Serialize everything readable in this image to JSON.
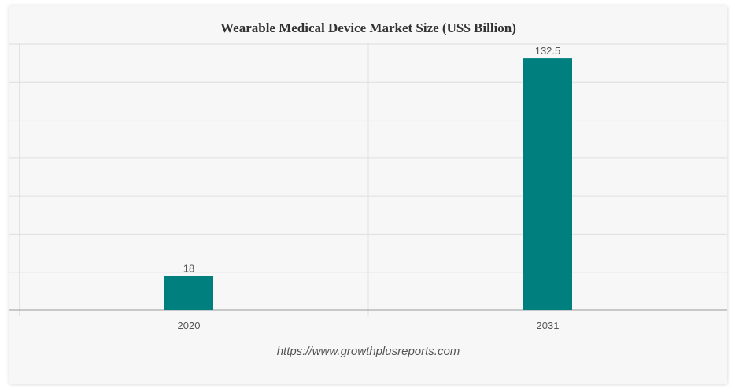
{
  "chart_data": {
    "type": "bar",
    "title": "Wearable Medical Device Market Size (US$ Billion)",
    "categories": [
      "2020",
      "2031"
    ],
    "values": [
      18,
      132.5
    ],
    "data_labels": [
      "18",
      "132.5"
    ],
    "xlabel": "",
    "ylabel": "",
    "ylim": [
      0,
      140
    ],
    "grid": true,
    "legend": "none",
    "bar_color": "#007f7f"
  },
  "source": "https://www.growthplusreports.com"
}
